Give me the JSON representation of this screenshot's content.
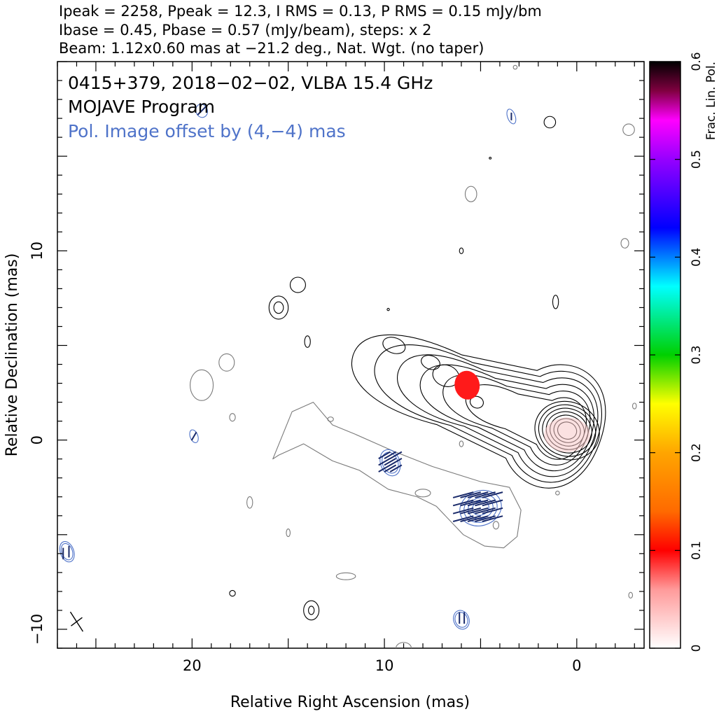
{
  "header": {
    "line1": "Ipeak = 2258, Ppeak = 12.3, I RMS = 0.13, P RMS = 0.15 mJy/bm",
    "line2": "Ibase = 0.45, Pbase = 0.57 (mJy/beam), steps: x 2",
    "line3": "Beam: 1.12x0.60 mas at −21.2 deg., Nat. Wgt. (no taper)"
  },
  "inset": {
    "title": "0415+379, 2018−02−02, VLBA 15.4 GHz",
    "program": "MOJAVE Program",
    "pol_note": "Pol. Image offset by (4,−4) mas",
    "pol_note_color": "#4f73c9"
  },
  "chart_data": {
    "type": "contour",
    "xlabel": "Relative Right Ascension (mas)",
    "ylabel": "Relative Declination (mas)",
    "xlim": [
      27,
      -3.5
    ],
    "ylim": [
      -11,
      20
    ],
    "x_ticks": [
      20,
      10,
      0
    ],
    "x_tick_labels": [
      "20",
      "10",
      "0"
    ],
    "y_ticks": [
      -10,
      0,
      10
    ],
    "y_tick_labels": [
      "−10",
      "0",
      "10"
    ],
    "core_position": [
      0.5,
      0.5
    ],
    "jet_direction": "north-east",
    "contour_levels_mjy": [
      0.45,
      0.9,
      1.8,
      3.6,
      7.2,
      14.4,
      28.8,
      57.6,
      115.2,
      230.4,
      460.8,
      921.6,
      1843.2
    ],
    "pol_offset_mas": [
      4,
      -4
    ],
    "pol_contour_color": "#4f73c9",
    "evpa_color": "#1a2a6a",
    "fractional_pol_patch": {
      "x": 5.7,
      "y": 2.9,
      "value": 0.08,
      "color": "#ff1a1a"
    },
    "colorbar": {
      "label": "Frac. Lin. Pol.",
      "min": 0,
      "max": 0.6,
      "ticks": [
        0,
        0.1,
        0.2,
        0.3,
        0.4,
        0.5,
        0.6
      ],
      "tick_labels": [
        "0",
        "0.1",
        "0.2",
        "0.3",
        "0.4",
        "0.5",
        "0.6"
      ],
      "stops": [
        {
          "v": 0.0,
          "c": "#ffffff"
        },
        {
          "v": 0.06,
          "c": "#ff9a9a"
        },
        {
          "v": 0.1,
          "c": "#ff0000"
        },
        {
          "v": 0.14,
          "c": "#ff6a00"
        },
        {
          "v": 0.2,
          "c": "#ffa500"
        },
        {
          "v": 0.25,
          "c": "#ffff00"
        },
        {
          "v": 0.3,
          "c": "#00d000"
        },
        {
          "v": 0.37,
          "c": "#00ffff"
        },
        {
          "v": 0.43,
          "c": "#0000ff"
        },
        {
          "v": 0.5,
          "c": "#9600ff"
        },
        {
          "v": 0.54,
          "c": "#ff00ff"
        },
        {
          "v": 0.57,
          "c": "#800040"
        },
        {
          "v": 0.6,
          "c": "#000000"
        }
      ]
    }
  }
}
